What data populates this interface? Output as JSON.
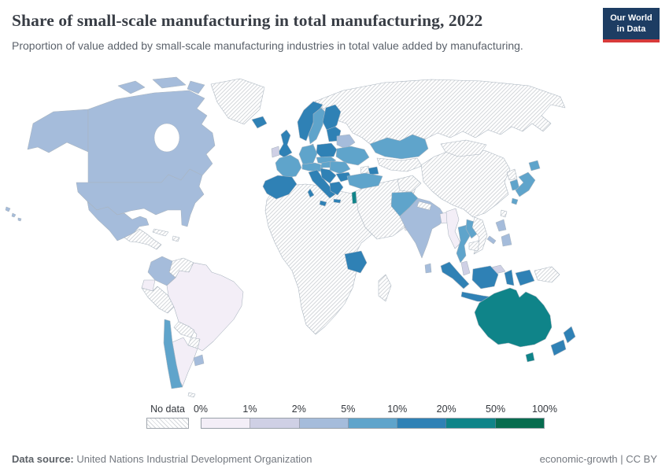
{
  "header": {
    "title": "Share of small-scale manufacturing in total manufacturing, 2022",
    "subtitle": "Proportion of value added by small-scale manufacturing industries in total value added by manufacturing.",
    "logo": {
      "line1": "Our World",
      "line2": "in Data",
      "bg_color": "#1d3d63",
      "accent_color": "#d73a3a"
    }
  },
  "legend": {
    "no_data_label": "No data",
    "tick_labels": [
      "0%",
      "1%",
      "2%",
      "5%",
      "10%",
      "20%",
      "50%",
      "100%"
    ],
    "bucket_labels": [
      "0-1%",
      "1-2%",
      "2-5%",
      "5-10%",
      "10-20%",
      "20-50%",
      "50-100%"
    ],
    "bucket_colors": [
      "#f3eef7",
      "#cfd0e5",
      "#a5bcdb",
      "#5fa4cb",
      "#2f81b5",
      "#0f8489",
      "#076c4f"
    ]
  },
  "map": {
    "hatch_line_color": "#d4d7db",
    "border_color": "#a9b4bf",
    "regions": {
      "alaska": 2,
      "canada": 2,
      "arctic-islands-1": 2,
      "arctic-islands-2": 2,
      "arctic-islands-3": 2,
      "united-states": 2,
      "hawaii": 2,
      "mexico": 2,
      "greenland": -1,
      "iceland": 4,
      "central-america": -1,
      "cuba": -1,
      "hispaniola": -1,
      "colombia": 2,
      "venezuela": -1,
      "guyanas": -1,
      "ecuador": 0,
      "peru": -1,
      "brazil": 0,
      "bolivia": -1,
      "paraguay": -1,
      "chile": 3,
      "argentina": 0,
      "uruguay": 2,
      "falkland-islands": -1,
      "norway": 4,
      "sweden": 3,
      "finland": 4,
      "denmark": 4,
      "united-kingdom": 4,
      "ireland": 1,
      "france": 3,
      "spain-portugal": 4,
      "germany": 3,
      "alpine-states": 3,
      "italy": 4,
      "sicily": 4,
      "sardinia": 4,
      "poland": 4,
      "czech-slovakia": 3,
      "baltic-states": 4,
      "belarus": 2,
      "ukraine": 3,
      "hungary": 3,
      "romania": 3,
      "balkans": 4,
      "bulgaria": 4,
      "greece": 4,
      "crete": 4,
      "turkey": 3,
      "azerbaijan": 4,
      "georgia-armenia": -1,
      "russia": -1,
      "kazakhstan": 3,
      "central-asia": -1,
      "china": -1,
      "mongolia": -1,
      "north-korea": -1,
      "south-korea": 3,
      "japan-hokkaido": 3,
      "japan-honshu": 3,
      "japan-kyushu": 3,
      "taiwan": -1,
      "afghanistan": -1,
      "pakistan": 3,
      "india": 2,
      "nepal": -1,
      "bangladesh": 0,
      "sri-lanka": 2,
      "myanmar": 0,
      "thailand": 3,
      "laos": 3,
      "vietnam": -1,
      "cambodia": -1,
      "malaysia-peninsula": 1,
      "malaysia-borneo": 1,
      "indonesia-sumatra": 4,
      "indonesia-java": 4,
      "indonesia-kalimantan": 4,
      "indonesia-sulawesi": 4,
      "indonesia-papua": 4,
      "indonesia-lesser-sunda-1": 4,
      "indonesia-lesser-sunda-2": 4,
      "philippines-luzon": 2,
      "philippines-mindanao": 2,
      "philippines-palawan": 2,
      "papua-new-guinea": -1,
      "africa": -1,
      "tanzania": 4,
      "madagascar": -1,
      "middle-east": -1,
      "israel": 5,
      "oman": 0,
      "australia": 5,
      "tasmania": 5,
      "new-zealand-north": 4,
      "new-zealand-south": 4
    }
  },
  "footer": {
    "source_label": "Data source:",
    "source_value": "United Nations Industrial Development Organization",
    "right_text": "economic-growth | CC BY"
  }
}
